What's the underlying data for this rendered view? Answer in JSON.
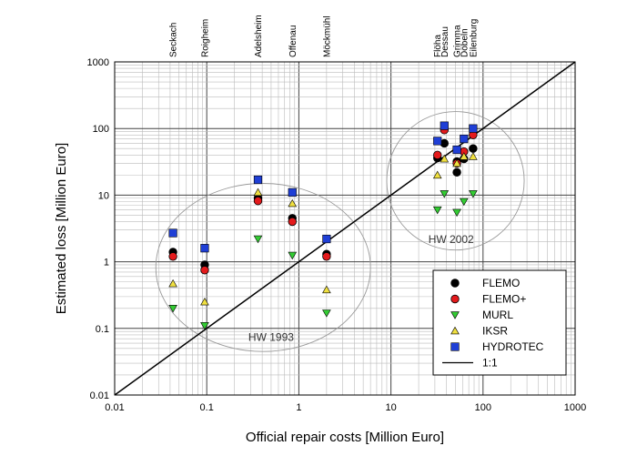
{
  "chart_data": {
    "type": "scatter",
    "xlabel": "Official repair costs [Million Euro]",
    "ylabel": "Estimated loss [Million Euro]",
    "x_scale": "log",
    "y_scale": "log",
    "xlim": [
      0.01,
      1000
    ],
    "ylim": [
      0.01,
      1000
    ],
    "x_ticks": [
      "0.01",
      "0.1",
      "1",
      "10",
      "100",
      "1000"
    ],
    "y_ticks": [
      "0.01",
      "0.1",
      "1",
      "10",
      "100",
      "1000"
    ],
    "grid": true,
    "legend_position": "bottom-right",
    "top_labels": [
      {
        "name": "Seckach",
        "x": 0.043
      },
      {
        "name": "Roigheim",
        "x": 0.095
      },
      {
        "name": "Adelsheim",
        "x": 0.36
      },
      {
        "name": "Offenau",
        "x": 0.85
      },
      {
        "name": "Möckmühl",
        "x": 2.0
      },
      {
        "name": "Flöha",
        "x": 32
      },
      {
        "name": "Dessau",
        "x": 38
      },
      {
        "name": "Grimma",
        "x": 52
      },
      {
        "name": "Döbeln",
        "x": 62
      },
      {
        "name": "Eilenburg",
        "x": 78
      }
    ],
    "series": [
      {
        "name": "FLEMO",
        "marker": "circle",
        "color": "#000000",
        "points": [
          [
            0.043,
            1.4
          ],
          [
            0.095,
            0.9
          ],
          [
            0.36,
            9.0
          ],
          [
            0.85,
            4.5
          ],
          [
            2.0,
            1.3
          ],
          [
            32,
            36
          ],
          [
            38,
            60
          ],
          [
            52,
            22
          ],
          [
            52,
            32
          ],
          [
            62,
            35
          ],
          [
            78,
            50
          ]
        ]
      },
      {
        "name": "FLEMO+",
        "marker": "circle",
        "color": "#e41a1c",
        "points": [
          [
            0.043,
            1.2
          ],
          [
            0.095,
            0.75
          ],
          [
            0.36,
            8.2
          ],
          [
            0.85,
            4.0
          ],
          [
            2.0,
            1.2
          ],
          [
            32,
            40
          ],
          [
            38,
            95
          ],
          [
            52,
            30
          ],
          [
            62,
            45
          ],
          [
            78,
            80
          ]
        ]
      },
      {
        "name": "MURL",
        "marker": "triangle-down",
        "color": "#33cc33",
        "points": [
          [
            0.043,
            0.2
          ],
          [
            0.095,
            0.11
          ],
          [
            0.36,
            2.2
          ],
          [
            0.85,
            1.25
          ],
          [
            2.0,
            0.17
          ],
          [
            32,
            6.0
          ],
          [
            38,
            10.5
          ],
          [
            52,
            5.5
          ],
          [
            62,
            8.0
          ],
          [
            78,
            10.5
          ]
        ]
      },
      {
        "name": "IKSR",
        "marker": "triangle-up",
        "color": "#f0e040",
        "points": [
          [
            0.043,
            0.47
          ],
          [
            0.095,
            0.25
          ],
          [
            0.36,
            11
          ],
          [
            0.85,
            7.5
          ],
          [
            2.0,
            0.38
          ],
          [
            32,
            20
          ],
          [
            38,
            35
          ],
          [
            52,
            30
          ],
          [
            62,
            38
          ],
          [
            78,
            38
          ]
        ]
      },
      {
        "name": "HYDROTEC",
        "marker": "square",
        "color": "#1f3fd6",
        "points": [
          [
            0.043,
            2.7
          ],
          [
            0.095,
            1.6
          ],
          [
            0.36,
            17
          ],
          [
            0.85,
            11
          ],
          [
            2.0,
            2.2
          ],
          [
            32,
            65
          ],
          [
            38,
            110
          ],
          [
            52,
            48
          ],
          [
            62,
            70
          ],
          [
            78,
            100
          ]
        ]
      }
    ],
    "reference_line": {
      "name": "1:1"
    },
    "annotations": [
      {
        "text": "HW 1993",
        "at": [
          0.5,
          0.065
        ]
      },
      {
        "text": "HW 2002",
        "at": [
          45,
          1.9
        ]
      }
    ],
    "ellipses": [
      {
        "center": [
          0.42,
          0.9
        ],
        "span_x": [
          0.028,
          6.0
        ],
        "span_y": [
          0.045,
          15
        ]
      },
      {
        "center": [
          50,
          17
        ],
        "span_x": [
          9,
          280
        ],
        "span_y": [
          1.5,
          180
        ]
      }
    ]
  }
}
